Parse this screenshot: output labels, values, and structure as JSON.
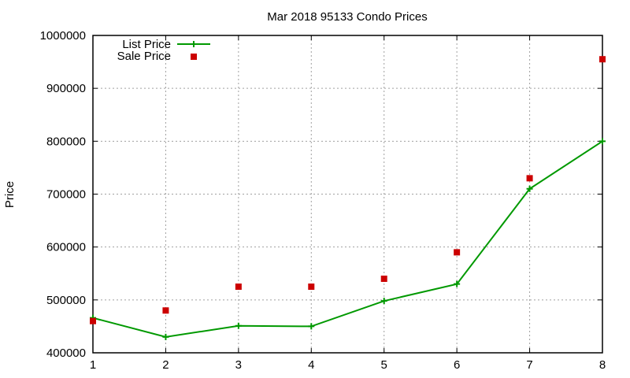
{
  "chart_data": {
    "type": "line",
    "title": "Mar 2018 95133 Condo Prices",
    "xlabel": "",
    "ylabel": "Price",
    "x": [
      1,
      2,
      3,
      4,
      5,
      6,
      7,
      8
    ],
    "xlim": [
      1,
      8
    ],
    "ylim": [
      400000,
      1000000
    ],
    "yticks": [
      "400000",
      "500000",
      "600000",
      "700000",
      "800000",
      "900000",
      "1000000"
    ],
    "xticks": [
      "1",
      "2",
      "3",
      "4",
      "5",
      "6",
      "7",
      "8"
    ],
    "grid": true,
    "legend_position": "top-left",
    "series": [
      {
        "name": "List Price",
        "style": "linespoints",
        "color": "#009900",
        "values": [
          466000,
          430000,
          451000,
          450000,
          498000,
          530000,
          710000,
          800000
        ]
      },
      {
        "name": "Sale Price",
        "style": "points",
        "color": "#cc0000",
        "values": [
          460000,
          480000,
          525000,
          525000,
          540000,
          590000,
          730000,
          955000
        ]
      }
    ]
  }
}
